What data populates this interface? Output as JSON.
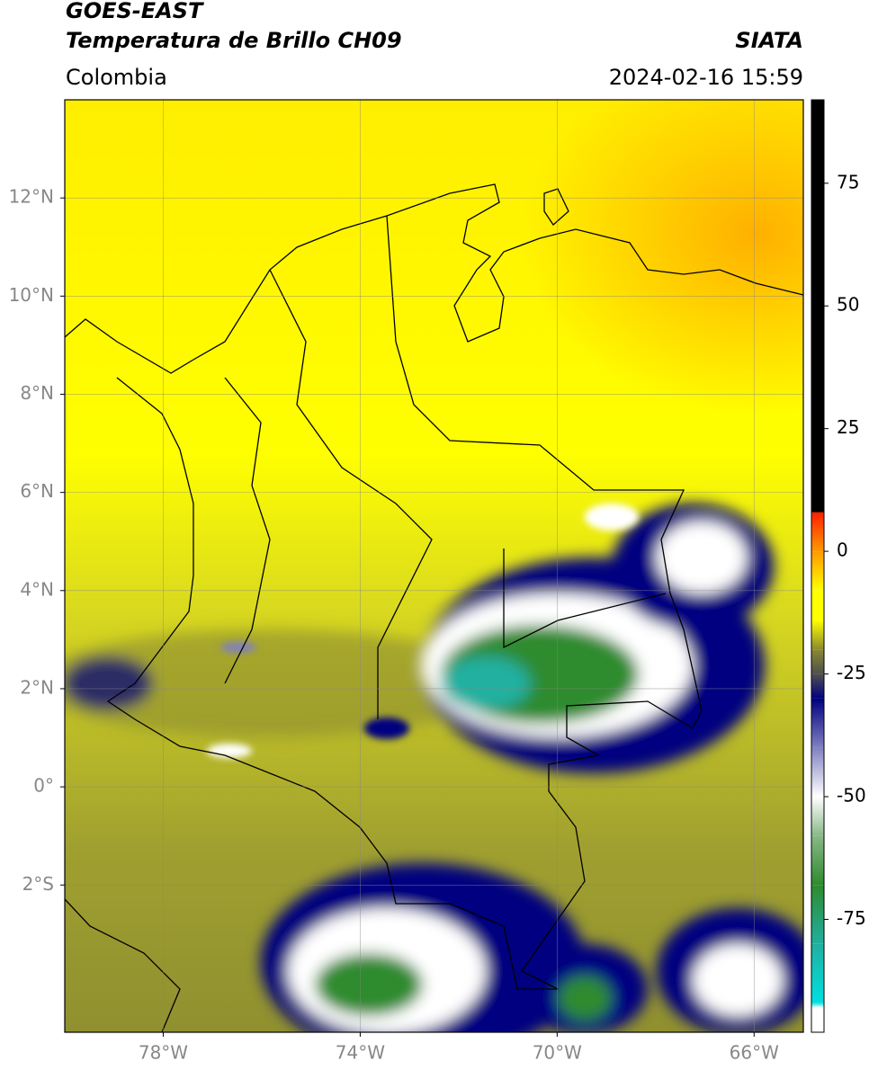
{
  "chart_data": {
    "type": "map",
    "title": "GOES-EAST",
    "subtitle": "Temperatura de Brillo CH09",
    "source": "SIATA",
    "region": "Colombia",
    "datetime": "2024-02-16 15:59",
    "xlim": [
      -80,
      -65
    ],
    "ylim": [
      -5,
      14
    ],
    "xticks": [
      {
        "value": -78,
        "label": "78°W"
      },
      {
        "value": -74,
        "label": "74°W"
      },
      {
        "value": -70,
        "label": "70°W"
      },
      {
        "value": -66,
        "label": "66°W"
      }
    ],
    "yticks": [
      {
        "value": -2,
        "label": "2°S"
      },
      {
        "value": 0,
        "label": "0°"
      },
      {
        "value": 2,
        "label": "2°N"
      },
      {
        "value": 4,
        "label": "4°N"
      },
      {
        "value": 6,
        "label": "6°N"
      },
      {
        "value": 8,
        "label": "8°N"
      },
      {
        "value": 10,
        "label": "10°N"
      },
      {
        "value": 12,
        "label": "12°N"
      }
    ],
    "grid": true,
    "colorbar": {
      "lim": [
        -98,
        92
      ],
      "ticks": [
        -75,
        -50,
        -25,
        0,
        25,
        50,
        75
      ],
      "stops": [
        [
          -98,
          "#ffffff"
        ],
        [
          -93,
          "#ffffff"
        ],
        [
          -92,
          "#00e0e0"
        ],
        [
          -80,
          "#20b0a0"
        ],
        [
          -68,
          "#2e8b2e"
        ],
        [
          -58,
          "#88b888"
        ],
        [
          -50,
          "#ffffff"
        ],
        [
          -40,
          "#8080c0"
        ],
        [
          -30,
          "#000080"
        ],
        [
          -25,
          "#505050"
        ],
        [
          -20,
          "#8a8a30"
        ],
        [
          -14,
          "#ffff00"
        ],
        [
          -8,
          "#ffff00"
        ],
        [
          0,
          "#ff9900"
        ],
        [
          7.9,
          "#ff2000"
        ],
        [
          8,
          "#000000"
        ],
        [
          92,
          "#000000"
        ]
      ]
    }
  }
}
